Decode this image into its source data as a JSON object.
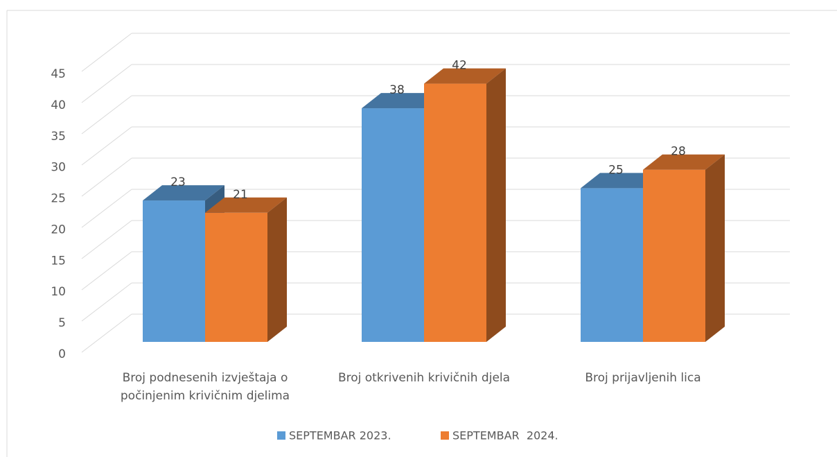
{
  "chart_data": {
    "type": "bar3d",
    "categories": [
      "Broj podnesenih izvještaja o počinjenim krivičnim djelima",
      "Broj otkrivenih krivičnih djela",
      "Broj prijavljenih lica"
    ],
    "series": [
      {
        "name": "SEPTEMBAR 2023.",
        "color": "#5b9bd5",
        "values": [
          23,
          38,
          25
        ]
      },
      {
        "name": "SEPTEMBAR  2024.",
        "color": "#ed7d31",
        "values": [
          21,
          42,
          28
        ]
      }
    ],
    "ylim": [
      0,
      45
    ],
    "yticks": [
      0,
      5,
      10,
      15,
      20,
      25,
      30,
      35,
      40,
      45
    ],
    "grid": true,
    "legend": "bottom"
  }
}
